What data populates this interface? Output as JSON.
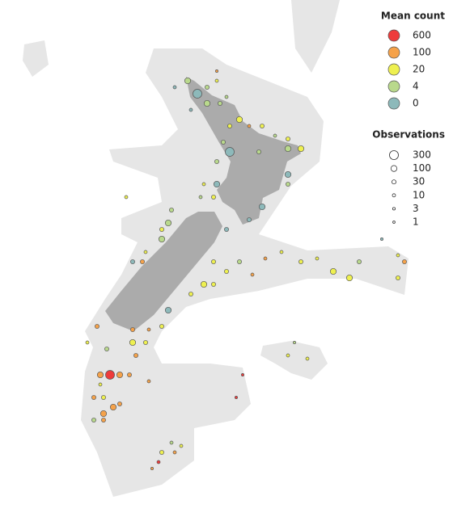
{
  "chart_data": {
    "type": "bubble-map",
    "legend_color": {
      "title": "Mean count",
      "values": [
        600,
        100,
        20,
        4,
        0
      ],
      "colors": [
        "#ee3b3b",
        "#f5a24a",
        "#eef050",
        "#b9d98c",
        "#8db9ba"
      ]
    },
    "legend_size": {
      "title": "Observations",
      "values": [
        300,
        100,
        30,
        10,
        3,
        1
      ]
    },
    "points": {
      "lon": [
        170.8,
        171.1,
        171.4,
        171.7,
        171.7,
        171.4,
        171.8,
        172.0,
        172.4,
        172.1,
        172.7,
        173.1,
        173.5,
        173.9,
        174.3,
        173.9,
        173.0,
        172.1,
        171.9,
        171.7,
        171.7,
        171.3,
        171.6,
        171.2,
        173.9,
        173.9,
        173.1,
        172.7,
        172.0,
        170.3,
        170.2,
        170.0,
        170.0,
        169.5,
        169.4,
        169.1,
        168.9,
        171.6,
        172.0,
        172.4,
        172.8,
        173.2,
        173.7,
        174.3,
        174.8,
        175.3,
        175.8,
        176.1,
        177.3,
        177.5,
        177.3,
        176.8,
        171.6,
        171.3,
        170.9,
        170.2,
        170.0,
        169.6,
        169.1,
        168.0,
        167.7,
        169.1,
        169.5,
        169.2,
        168.3,
        168.1,
        168.4,
        168.7,
        169.0,
        169.6,
        168.1,
        168.2,
        167.9,
        168.5,
        168.2,
        168.7,
        168.2,
        167.9,
        170.3,
        170.6,
        170.0,
        170.4,
        169.9,
        169.7,
        172.5,
        172.3,
        173.9,
        174.5,
        174.1,
        170.9,
        170.4
      ],
      "lat": [
        -35.5,
        -35.9,
        -35.7,
        -35.5,
        -35.2,
        -36.2,
        -36.2,
        -36.0,
        -36.7,
        -36.9,
        -36.9,
        -36.9,
        -37.2,
        -37.3,
        -37.6,
        -37.6,
        -37.7,
        -37.7,
        -37.4,
        -38.0,
        -38.7,
        -38.7,
        -39.1,
        -39.1,
        -38.4,
        -38.7,
        -39.4,
        -39.8,
        -40.1,
        -39.5,
        -39.9,
        -40.1,
        -40.4,
        -40.8,
        -41.1,
        -41.1,
        -39.1,
        -41.1,
        -41.4,
        -41.1,
        -41.5,
        -41.0,
        -40.8,
        -41.1,
        -41.0,
        -41.4,
        -41.6,
        -41.1,
        -40.9,
        -41.1,
        -41.6,
        -40.4,
        -41.8,
        -41.8,
        -42.1,
        -42.6,
        -43.1,
        -43.2,
        -43.2,
        -43.1,
        -43.6,
        -43.6,
        -43.6,
        -44.0,
        -43.8,
        -44.6,
        -44.6,
        -44.6,
        -44.6,
        -44.8,
        -44.9,
        -45.3,
        -45.3,
        -45.6,
        -45.8,
        -45.5,
        -46.0,
        -46.0,
        -46.7,
        -46.8,
        -47.0,
        -47.0,
        -47.3,
        -47.5,
        -44.6,
        -45.3,
        -44.0,
        -44.1,
        -43.6,
        -36.4,
        -35.7
      ],
      "mean_count": [
        4,
        0,
        4,
        20,
        100,
        4,
        4,
        4,
        20,
        20,
        100,
        20,
        4,
        20,
        20,
        4,
        4,
        0,
        4,
        4,
        0,
        20,
        20,
        4,
        0,
        4,
        0,
        0,
        0,
        4,
        4,
        20,
        4,
        20,
        100,
        0,
        20,
        20,
        20,
        4,
        100,
        100,
        20,
        20,
        20,
        20,
        20,
        4,
        20,
        100,
        20,
        0,
        20,
        20,
        20,
        0,
        20,
        100,
        100,
        100,
        20,
        20,
        20,
        100,
        4,
        100,
        600,
        100,
        100,
        100,
        20,
        20,
        100,
        100,
        100,
        100,
        100,
        4,
        4,
        20,
        20,
        100,
        600,
        100,
        600,
        600,
        20,
        20,
        4,
        0,
        0
      ],
      "observations": [
        100,
        300,
        30,
        10,
        3,
        100,
        30,
        10,
        100,
        30,
        10,
        30,
        10,
        30,
        100,
        100,
        30,
        300,
        30,
        30,
        100,
        10,
        30,
        10,
        100,
        30,
        100,
        30,
        30,
        30,
        100,
        30,
        100,
        10,
        30,
        30,
        10,
        30,
        30,
        30,
        10,
        10,
        10,
        30,
        10,
        100,
        100,
        30,
        10,
        30,
        30,
        3,
        30,
        100,
        30,
        100,
        30,
        10,
        30,
        30,
        10,
        100,
        30,
        30,
        30,
        100,
        300,
        100,
        30,
        10,
        10,
        30,
        30,
        100,
        100,
        30,
        30,
        30,
        10,
        10,
        30,
        10,
        10,
        3,
        3,
        3,
        10,
        10,
        3,
        10,
        10
      ]
    }
  }
}
